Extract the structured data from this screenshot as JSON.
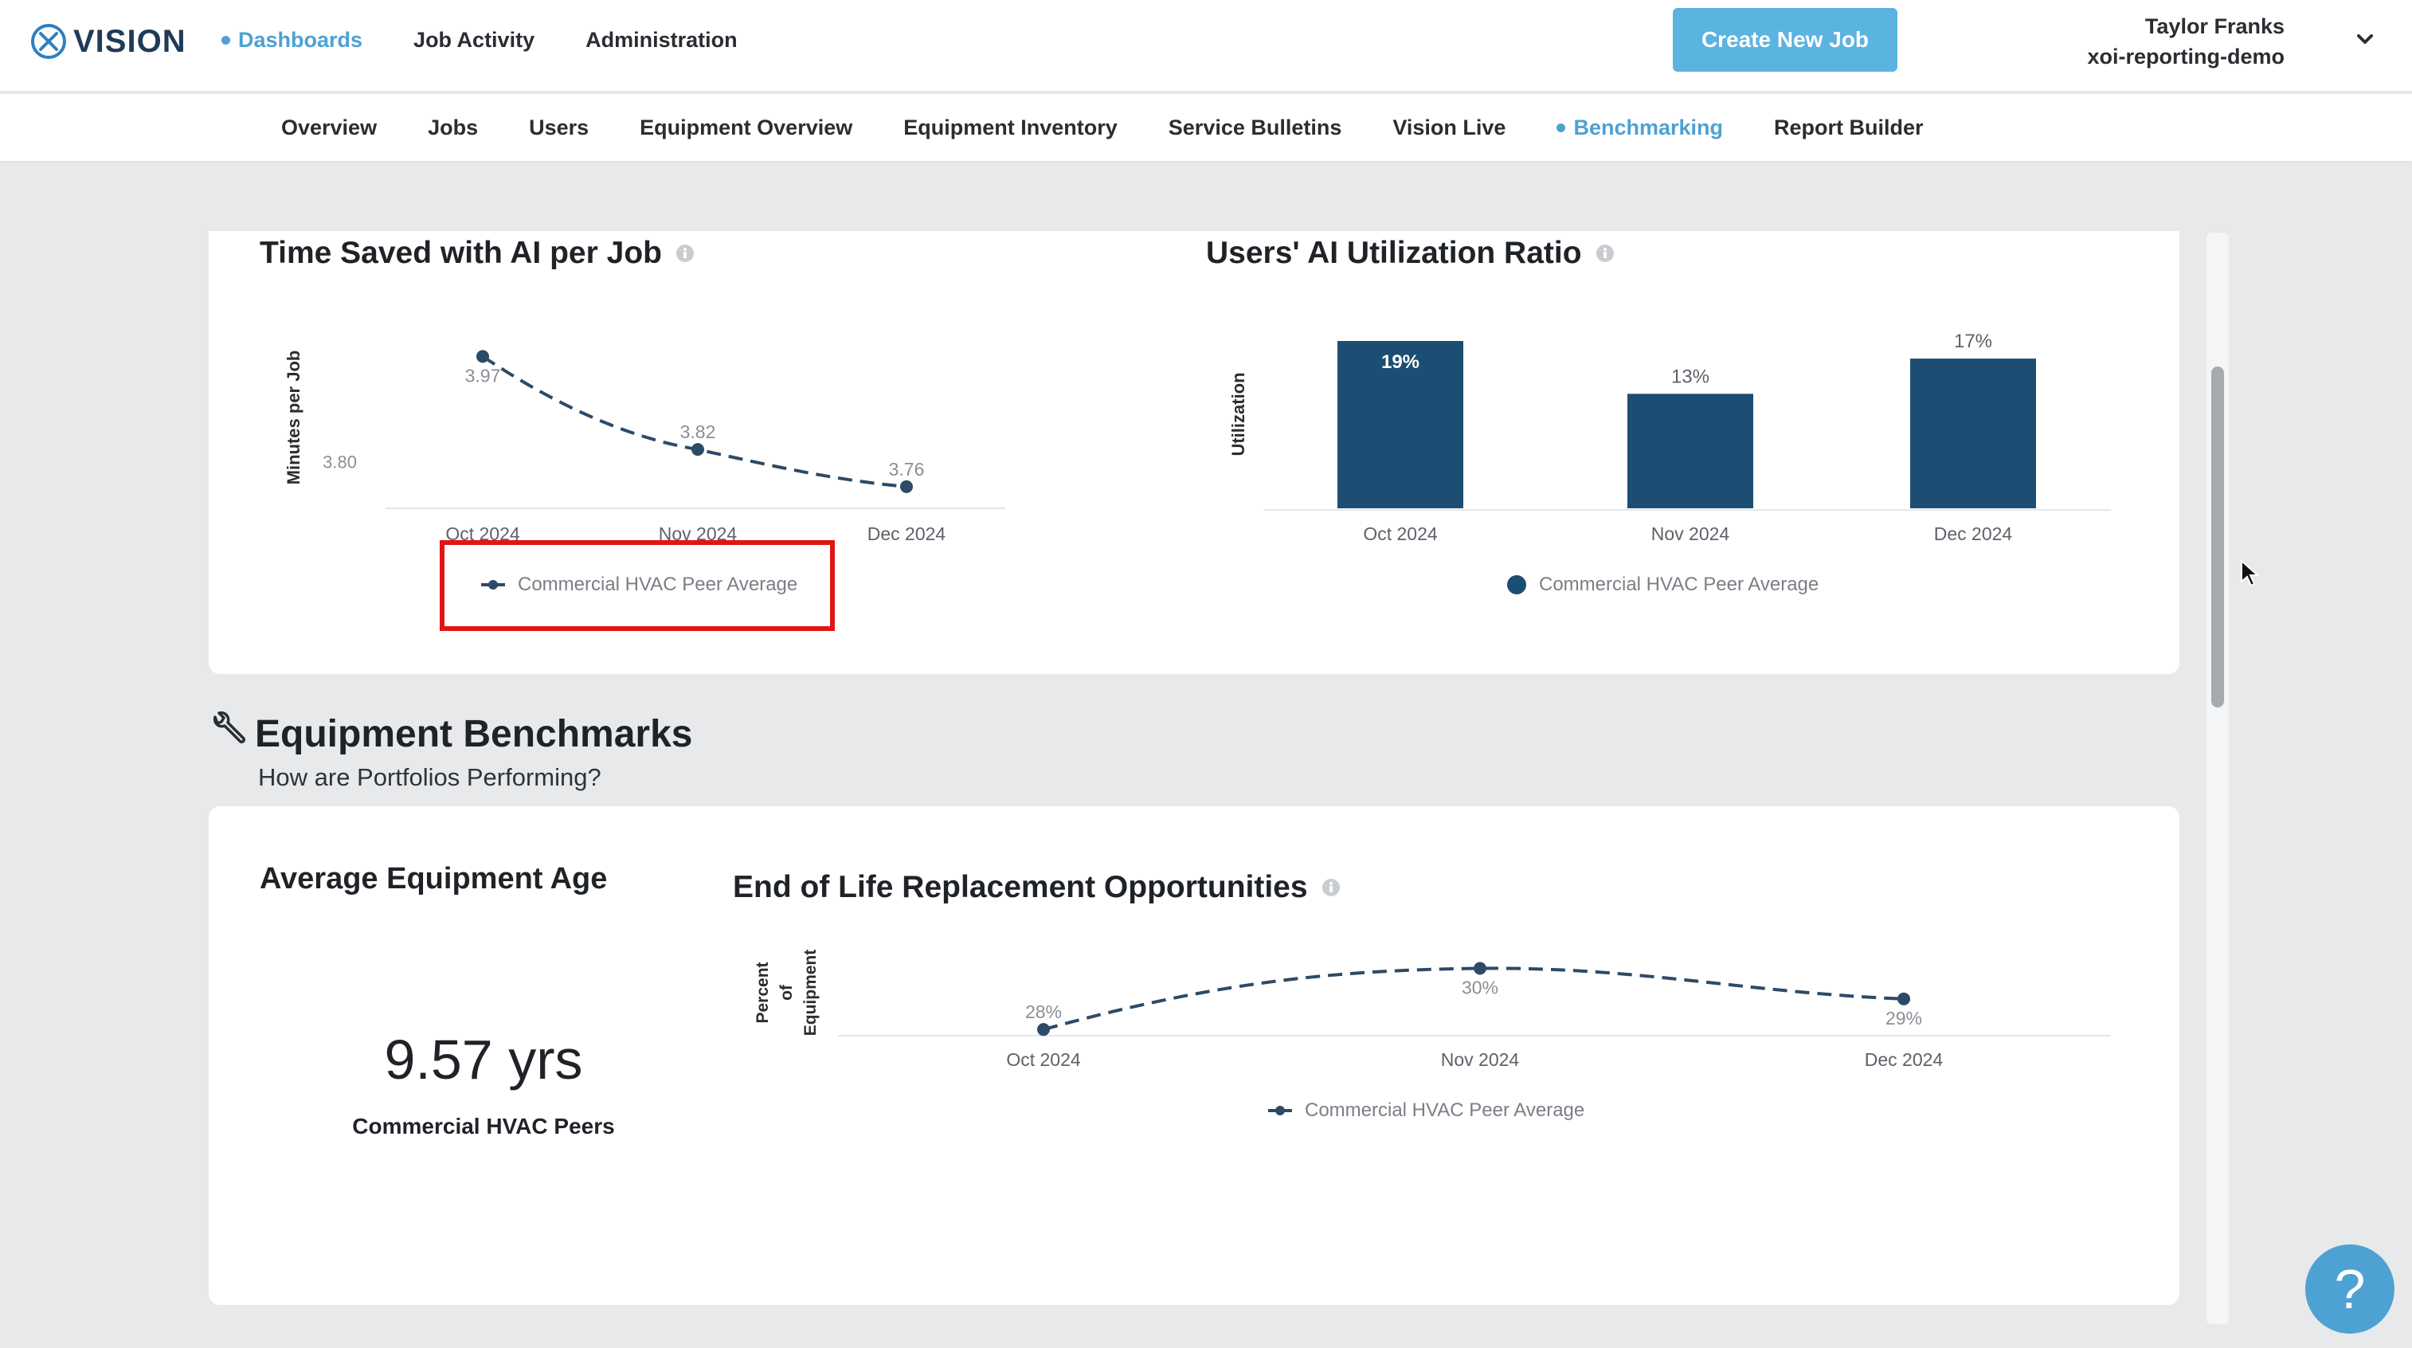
{
  "app": {
    "name": "VISION"
  },
  "nav": {
    "items": [
      {
        "label": "Dashboards",
        "active": true
      },
      {
        "label": "Job Activity",
        "active": false
      },
      {
        "label": "Administration",
        "active": false
      }
    ],
    "create_button": "Create New Job",
    "user_name": "Taylor Franks",
    "org": "xoi-reporting-demo"
  },
  "subnav": {
    "items": [
      {
        "label": "Overview",
        "active": false
      },
      {
        "label": "Jobs",
        "active": false
      },
      {
        "label": "Users",
        "active": false
      },
      {
        "label": "Equipment Overview",
        "active": false
      },
      {
        "label": "Equipment Inventory",
        "active": false
      },
      {
        "label": "Service Bulletins",
        "active": false
      },
      {
        "label": "Vision Live",
        "active": false
      },
      {
        "label": "Benchmarking",
        "active": true
      },
      {
        "label": "Report Builder",
        "active": false
      }
    ]
  },
  "ai_section": {
    "time_saved_title": "Time Saved with AI per Job",
    "utilization_title": "Users' AI Utilization Ratio"
  },
  "equipment_section": {
    "title": "Equipment Benchmarks",
    "subtitle": "How are Portfolios Performing?",
    "age_title": "Average Equipment Age",
    "age_value": "9.57 yrs",
    "age_label": "Commercial HVAC Peers",
    "eol_title": "End of Life Replacement Opportunities"
  },
  "chart_data": [
    {
      "type": "line",
      "title": "Time Saved with AI per Job",
      "ylabel": "Minutes per Job",
      "y_ticks": [
        "3.80"
      ],
      "x": [
        "Oct 2024",
        "Nov 2024",
        "Dec 2024"
      ],
      "series": [
        {
          "name": "Commercial HVAC Peer Average",
          "values": [
            3.97,
            3.82,
            3.76
          ],
          "labels": [
            "3.97",
            "3.82",
            "3.76"
          ]
        }
      ],
      "ylim": [
        3.72,
        4.0
      ],
      "color": "#2d4a66",
      "line_style": "dashed"
    },
    {
      "type": "bar",
      "title": "Users' AI Utilization Ratio",
      "ylabel": "Utilization",
      "categories": [
        "Oct 2024",
        "Nov 2024",
        "Dec 2024"
      ],
      "series": [
        {
          "name": "Commercial HVAC Peer Average",
          "values": [
            19,
            13,
            17
          ],
          "labels": [
            "19%",
            "13%",
            "17%"
          ]
        }
      ],
      "ylim": [
        0,
        19
      ],
      "color": "#1c4e73"
    },
    {
      "type": "line",
      "title": "End of Life Replacement Opportunities",
      "ylabel": [
        "Percent",
        "of",
        "Equipment"
      ],
      "x": [
        "Oct 2024",
        "Nov 2024",
        "Dec 2024"
      ],
      "series": [
        {
          "name": "Commercial HVAC Peer Average",
          "values": [
            28,
            30,
            29
          ],
          "labels": [
            "28%",
            "30%",
            "29%"
          ]
        }
      ],
      "ylim": [
        27.9,
        30.3
      ],
      "color": "#2d4a66",
      "line_style": "dashed"
    }
  ]
}
